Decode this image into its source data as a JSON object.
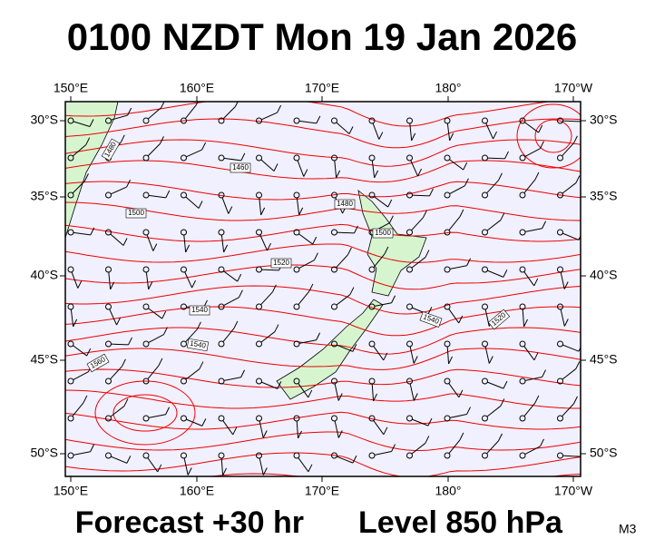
{
  "header": {
    "title": "0100 NZDT Mon 19 Jan 2026"
  },
  "map": {
    "lon_labels": [
      "150°E",
      "160°E",
      "170°E",
      "180°",
      "170°W"
    ],
    "lat_labels": [
      "30°S",
      "35°S",
      "40°S",
      "45°S",
      "50°S"
    ],
    "contour_labels": [
      "1480",
      "1460",
      "1480",
      "1500",
      "1500",
      "1520",
      "1540",
      "1540",
      "1520",
      "1540",
      "1560"
    ]
  },
  "footer": {
    "forecast": "Forecast +30 hr",
    "level": "Level 850 hPa",
    "model": "M3"
  }
}
